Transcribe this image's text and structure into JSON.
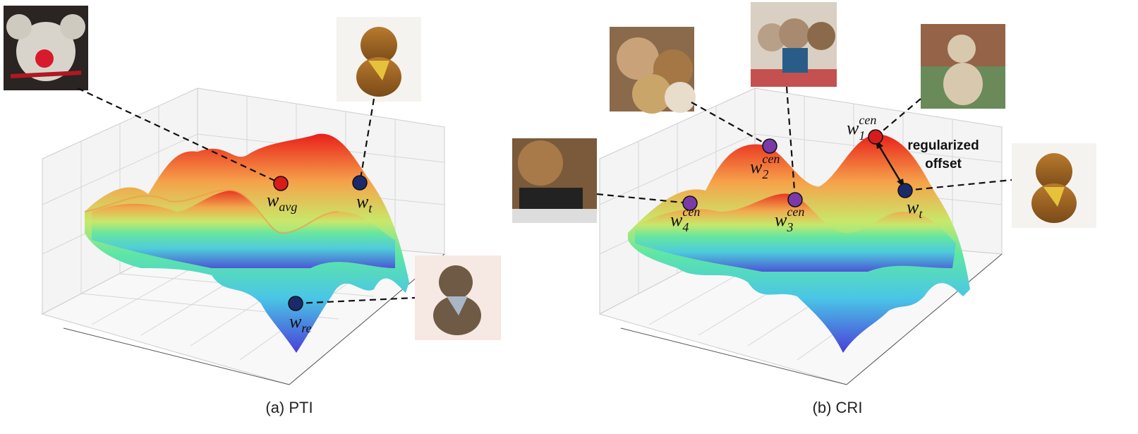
{
  "panels": [
    {
      "caption": "(a) PTI",
      "points": [
        {
          "symbol": "w",
          "subscript": "avg",
          "superscript": null
        },
        {
          "symbol": "w",
          "subscript": "t",
          "superscript": null
        },
        {
          "symbol": "w",
          "subscript": "re",
          "superscript": null
        }
      ]
    },
    {
      "caption": "(b) CRI",
      "points": [
        {
          "symbol": "w",
          "subscript": "1",
          "superscript": "cen"
        },
        {
          "symbol": "w",
          "subscript": "2",
          "superscript": "cen"
        },
        {
          "symbol": "w",
          "subscript": "3",
          "superscript": "cen"
        },
        {
          "symbol": "w",
          "subscript": "4",
          "superscript": "cen"
        },
        {
          "symbol": "w",
          "subscript": "t",
          "superscript": null
        }
      ],
      "annotation": [
        "regularized",
        "offset"
      ]
    }
  ]
}
